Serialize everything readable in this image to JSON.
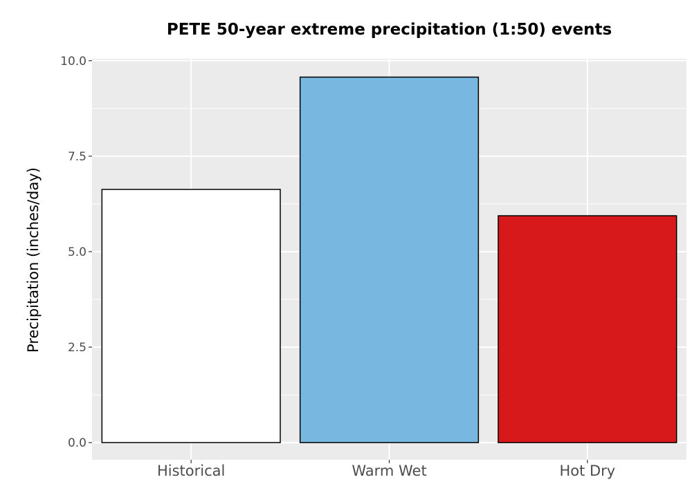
{
  "chart_data": {
    "type": "bar",
    "title": "PETE 50-year extreme precipitation (1:50) events",
    "xlabel": "",
    "ylabel": "Precipitation (inches/day)",
    "categories": [
      "Historical",
      "Warm Wet",
      "Hot Dry"
    ],
    "values": [
      6.63,
      9.57,
      5.94
    ],
    "bar_colors": [
      "#ffffff",
      "#78b7e0",
      "#d7191c"
    ],
    "ylim": [
      -0.45,
      10.05
    ],
    "yticks": [
      0.0,
      2.5,
      5.0,
      7.5,
      10.0
    ],
    "ytick_labels": [
      "0.0",
      "2.5",
      "5.0",
      "7.5",
      "10.0"
    ],
    "grid": true,
    "panel_background": "#ebebeb",
    "grid_color": "#ffffff",
    "bar_outline": "#000000"
  }
}
